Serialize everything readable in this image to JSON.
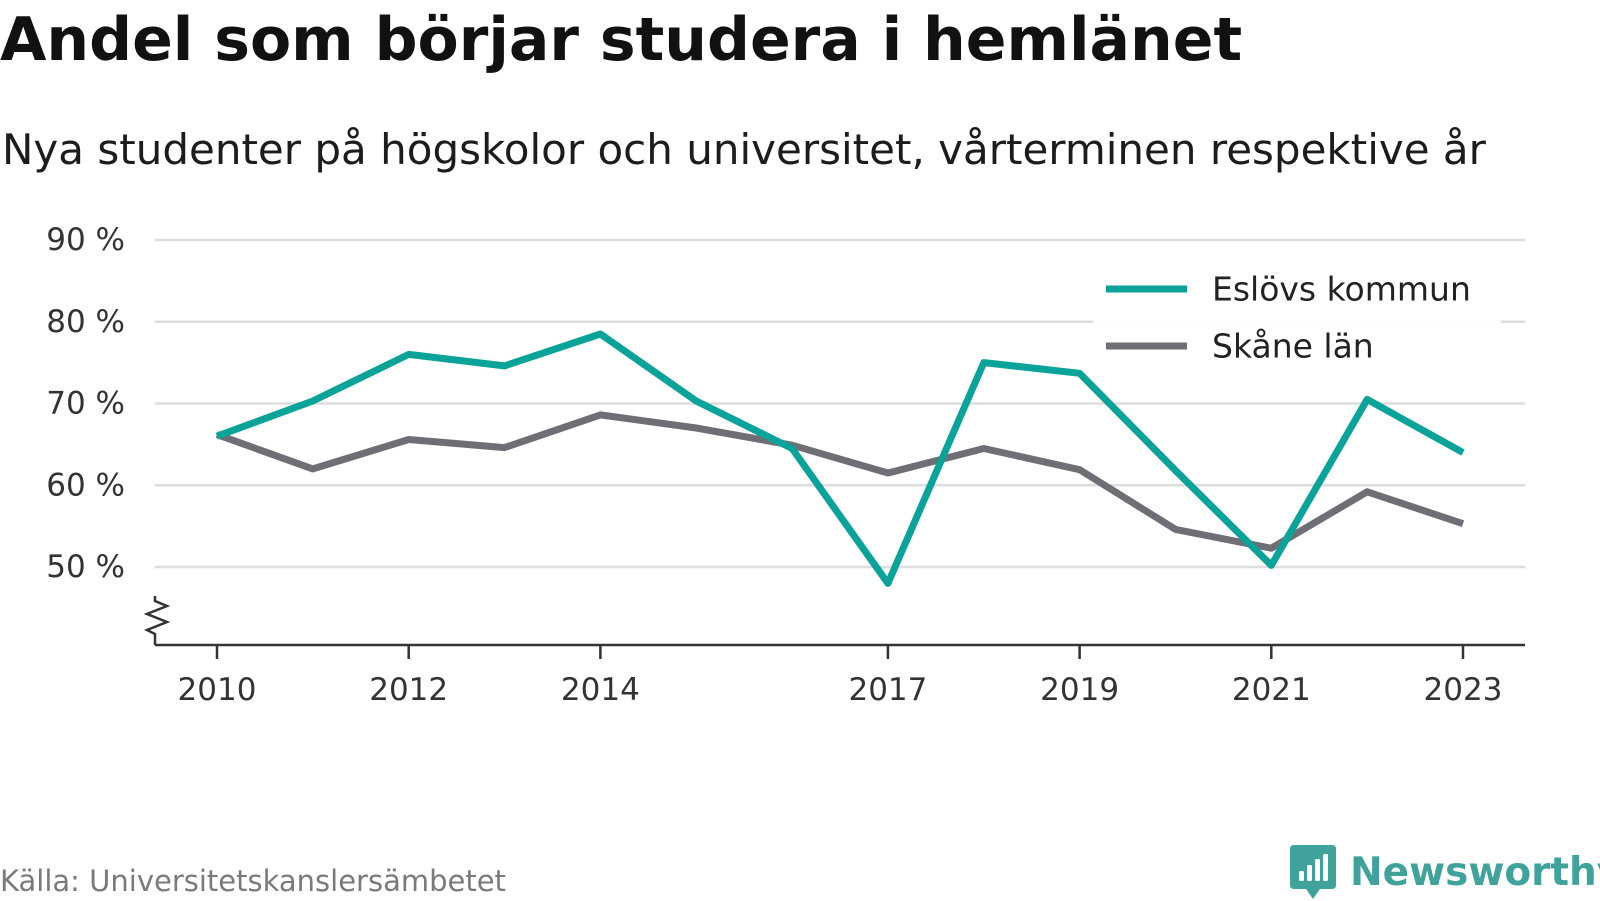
{
  "header": {
    "title": "Andel som börjar studera i hemlänet",
    "subtitle": "Nya studenter på högskolor och universitet, vårterminen respektive år"
  },
  "footer": {
    "source": "Källa: Universitetskanslersämbetet",
    "brand": "Newsworthy",
    "brand_icon": "bar-chart-badge-icon",
    "brand_color": "#3fa39b"
  },
  "chart_data": {
    "type": "line",
    "title": "Andel som börjar studera i hemlänet",
    "subtitle": "Nya studenter på högskolor och universitet, vårterminen respektive år",
    "x": [
      2010,
      2011,
      2012,
      2013,
      2014,
      2015,
      2016,
      2017,
      2018,
      2019,
      2020,
      2021,
      2022,
      2023
    ],
    "x_tick_labels": [
      "2010",
      "2012",
      "2014",
      "2017",
      "2019",
      "2021",
      "2023"
    ],
    "y_tick_values": [
      50,
      60,
      70,
      80,
      90
    ],
    "y_tick_labels": [
      "50 %",
      "60 %",
      "70 %",
      "80 %",
      "90 %"
    ],
    "ylim": [
      40,
      90
    ],
    "y_axis_break": true,
    "grid": true,
    "legend_position": "top-right",
    "series": [
      {
        "name": "Eslövs kommun",
        "color": "#0aa39a",
        "values": [
          66.0,
          70.3,
          76.0,
          74.6,
          78.5,
          70.3,
          64.5,
          48.0,
          75.0,
          73.7,
          61.8,
          50.2,
          70.5,
          64.0
        ]
      },
      {
        "name": "Skåne län",
        "color": "#6f6e74",
        "values": [
          66.2,
          62.0,
          65.6,
          64.6,
          68.6,
          67.0,
          64.9,
          61.5,
          64.5,
          61.9,
          54.6,
          52.3,
          59.2,
          55.3
        ]
      }
    ]
  }
}
